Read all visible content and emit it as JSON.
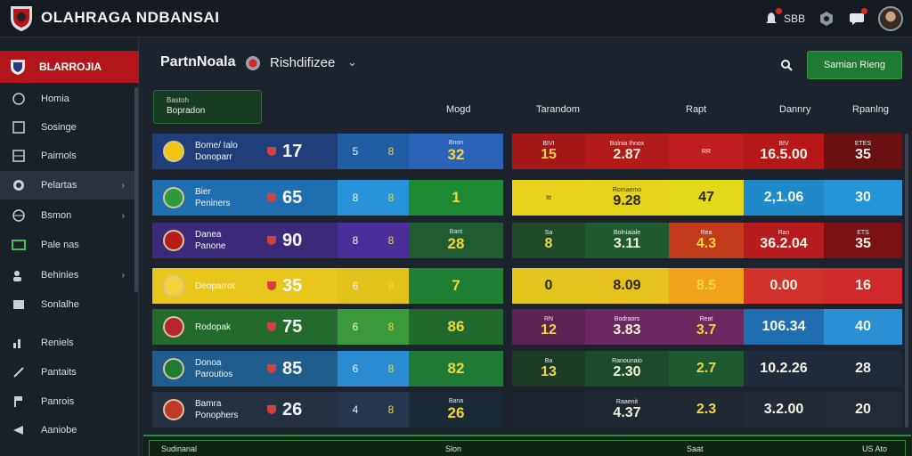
{
  "app": {
    "title": "OLAHRAGA NDBANSAI"
  },
  "topbar": {
    "notif_count": "SBB",
    "items": [
      {
        "name": "bell",
        "badge": true
      },
      {
        "name": "settings-hex",
        "badge": false
      },
      {
        "name": "chat",
        "badge": true
      }
    ]
  },
  "sidebar": {
    "header_label": "BLARROJIA",
    "items": [
      {
        "label": "Homia",
        "icon": "home-icon",
        "chevron": false,
        "active": false
      },
      {
        "label": "Sosinge",
        "icon": "chart-icon",
        "chevron": false,
        "active": false
      },
      {
        "label": "Pairnols",
        "icon": "table-icon",
        "chevron": false,
        "active": false
      },
      {
        "label": "Pelartas",
        "icon": "ball-icon",
        "chevron": true,
        "active": true
      },
      {
        "label": "Bsmon",
        "icon": "globe-icon",
        "chevron": true,
        "active": false
      },
      {
        "label": "Pale nas",
        "icon": "pitch-icon",
        "chevron": false,
        "active": false
      },
      {
        "label": "Behinies",
        "icon": "users-icon",
        "chevron": true,
        "active": false
      },
      {
        "label": "Sonlalhe",
        "icon": "list-icon",
        "chevron": false,
        "active": false
      },
      {
        "label": "Reniels",
        "icon": "stats-icon",
        "chevron": false,
        "active": false
      },
      {
        "label": "Pantaits",
        "icon": "tools-icon",
        "chevron": false,
        "active": false
      },
      {
        "label": "Panrois",
        "icon": "flag-icon",
        "chevron": false,
        "active": false
      },
      {
        "label": "Aaniobe",
        "icon": "whistle-icon",
        "chevron": false,
        "active": false
      }
    ]
  },
  "content": {
    "title": "PartnNoala",
    "subtitle": "Rishdifizee",
    "action_button": "Samian Rieng"
  },
  "columns": {
    "tab_line1": "Bastoh",
    "tab_line2": "Bopradon",
    "h1": "Mogd",
    "h2": "Tarandom",
    "h3": "Rapt",
    "h4": "Dannry",
    "h5": "Rpanlng"
  },
  "left_rows": [
    {
      "names": [
        "Bome/ Ialo",
        "Donoparr"
      ],
      "score": "17",
      "a": "5",
      "b": "8",
      "label": "Bnon",
      "value": "32",
      "colors": [
        "#1f3e7a",
        "#1f5ea3",
        "#2a63b8"
      ],
      "badge": "#f1c40f"
    },
    {
      "names": [
        "Bier",
        "Peniners"
      ],
      "score": "65",
      "a": "8",
      "b": "8",
      "label": "",
      "value": "1",
      "colors": [
        "#1f6fb0",
        "#2893d8",
        "#1f8a34"
      ],
      "badge": "#2e9a3d"
    },
    {
      "names": [
        "Danea",
        "Panone"
      ],
      "score": "90",
      "a": "8",
      "b": "8",
      "label": "Bant",
      "value": "28",
      "colors": [
        "#3b2a7a",
        "#4a2f9a",
        "#1f5c31"
      ],
      "badge": "#b71c1c"
    },
    {
      "names": [
        "Deoparrot",
        ""
      ],
      "score": "35",
      "a": "6",
      "b": "8",
      "label": "",
      "value": "7",
      "colors": [
        "#e8c61b",
        "#e0c21a",
        "#1f7f33"
      ],
      "badge": "#f7d23a"
    },
    {
      "names": [
        "Rodopak",
        ""
      ],
      "score": "75",
      "a": "6",
      "b": "8",
      "label": "",
      "value": "86",
      "colors": [
        "#226b2c",
        "#3a9a3a",
        "#1f6a2c"
      ],
      "badge": "#b7282b"
    },
    {
      "names": [
        "Donoa",
        "Paroutios"
      ],
      "score": "85",
      "a": "6",
      "b": "8",
      "label": "",
      "value": "82",
      "colors": [
        "#1f5d8f",
        "#2b8bd0",
        "#1f7a33"
      ],
      "badge": "#1f7a33"
    },
    {
      "names": [
        "Bamra",
        "Ponophers"
      ],
      "score": "26",
      "a": "4",
      "b": "8",
      "label": "Bana",
      "value": "26",
      "colors": [
        "#253041",
        "#26364c",
        "#1a2a36"
      ],
      "badge": "#c0392b"
    }
  ],
  "right_rows": [
    {
      "top": [
        "BIVI",
        "Bolnia Ihnox",
        "RR",
        "BIV",
        "ETES"
      ],
      "nums": [
        "15",
        "2.87",
        "",
        "16.5.00",
        "35"
      ],
      "colors": [
        "#a41818",
        "#b31a1a",
        "#c01f1f",
        "#b61818",
        "#6a0f12"
      ]
    },
    {
      "top": [
        "Itt",
        "Romaemo",
        "",
        "",
        ""
      ],
      "nums": [
        "",
        "9.28",
        "47",
        "2,1.06",
        "30"
      ],
      "colors": [
        "#e8d21e",
        "#e6d11c",
        "#e3d91a",
        "#1f8ac7",
        "#2595d8"
      ]
    },
    {
      "top": [
        "Sa",
        "Bolniaiale",
        "Rea",
        "Ran",
        "ETS"
      ],
      "nums": [
        "8",
        "3.11",
        "4.3",
        "36.2.04",
        "35"
      ],
      "colors": [
        "#1f4b2a",
        "#1f5b2e",
        "#c23b1b",
        "#b71c1c",
        "#7a1215"
      ]
    },
    {
      "top": [
        "",
        "",
        "",
        "",
        ""
      ],
      "nums": [
        "0",
        "8.09",
        "8.5",
        "0.00",
        "16"
      ],
      "colors": [
        "#e2c51d",
        "#e8c21c",
        "#f0a21c",
        "#d3322c",
        "#d12a2a"
      ]
    },
    {
      "top": [
        "RN",
        "Bodraors",
        "Reat",
        "",
        ""
      ],
      "nums": [
        "12",
        "3.83",
        "3.7",
        "106.34",
        "40"
      ],
      "colors": [
        "#5a2354",
        "#6a2a60",
        "#6a2a60",
        "#1f6fb0",
        "#2b8fd3"
      ]
    },
    {
      "top": [
        "Ba",
        "Ranounaio",
        "",
        "",
        ""
      ],
      "nums": [
        "13",
        "2.30",
        "2.7",
        "10.2.26",
        "28"
      ],
      "colors": [
        "#1a3b24",
        "#1d4a2b",
        "#1e5a2f",
        "#1f2a3a",
        "#212a3a"
      ]
    },
    {
      "top": [
        "",
        "Raaenit",
        "",
        "",
        ""
      ],
      "nums": [
        "",
        "4.37",
        "2.3",
        "3.2.00",
        "20"
      ],
      "colors": [
        "#1e2630",
        "#1f2833",
        "#1f2833",
        "#222a35",
        "#232b36"
      ]
    }
  ],
  "footer": {
    "left": "Sudinanal",
    "mid": "Slon",
    "right": "Saat",
    "far_right": "US Ato"
  }
}
